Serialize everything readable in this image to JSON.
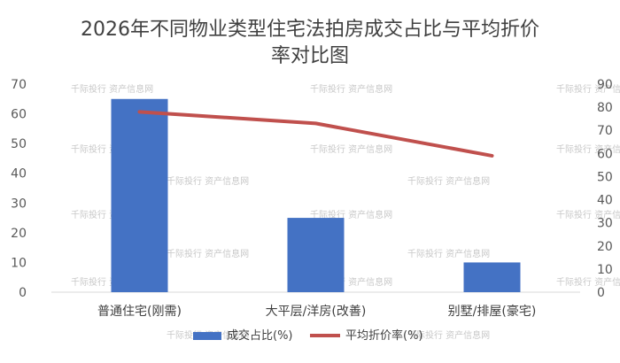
{
  "chart_data": {
    "type": "bar+line",
    "title": "2026年不同物业类型住宅法拍房成交占比与平均折价率对比图",
    "title_lines": [
      "2026年不同物业类型住宅法拍房成交占比与平均折价",
      "率对比图"
    ],
    "categories": [
      "普通住宅(刚需)",
      "大平层/洋房(改善)",
      "别墅/排屋(豪宅)"
    ],
    "series": [
      {
        "name": "成交占比(%)",
        "type": "bar",
        "axis": "left",
        "color": "#4472C4",
        "values": [
          65,
          25,
          10
        ]
      },
      {
        "name": "平均折价率(%)",
        "type": "line",
        "axis": "right",
        "color": "#C0504D",
        "values": [
          78,
          73,
          59
        ]
      }
    ],
    "y_left": {
      "min": 0,
      "max": 70,
      "ticks": [
        0,
        10,
        20,
        30,
        40,
        50,
        60,
        70
      ]
    },
    "y_right": {
      "min": 0,
      "max": 90,
      "ticks": [
        0,
        10,
        20,
        30,
        40,
        50,
        60,
        70,
        80,
        90
      ]
    },
    "grid": false,
    "legend_position": "bottom"
  },
  "watermark": "千际投行 资产信息网"
}
